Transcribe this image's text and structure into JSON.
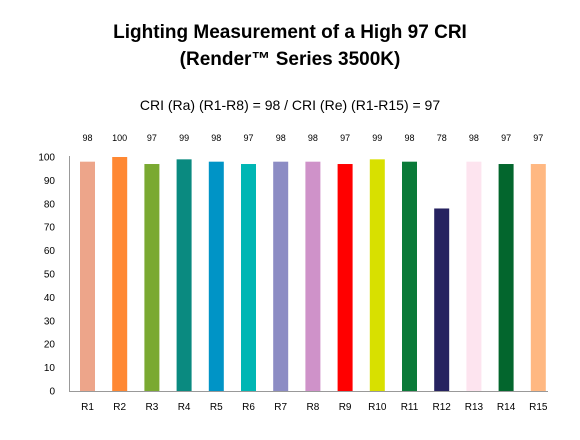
{
  "chart_data": {
    "type": "bar",
    "title": "Lighting Measurement of a High 97 CRI",
    "title_line2": "(Render™ Series 3500K)",
    "subtitle": "CRI (Ra) (R1-R8) = 98 / CRI (Re) (R1-R15) = 97",
    "xlabel": "",
    "ylabel": "",
    "ylim": [
      0,
      100
    ],
    "yticks": [
      0,
      10,
      20,
      30,
      40,
      50,
      60,
      70,
      80,
      90,
      100
    ],
    "grid": false,
    "categories": [
      "R1",
      "R2",
      "R3",
      "R4",
      "R5",
      "R6",
      "R7",
      "R8",
      "R9",
      "R10",
      "R11",
      "R12",
      "R13",
      "R14",
      "R15"
    ],
    "values": [
      98,
      100,
      97,
      99,
      98,
      97,
      98,
      98,
      97,
      99,
      98,
      78,
      98,
      97,
      97
    ],
    "data_labels": [
      "98",
      "100",
      "97",
      "99",
      "98",
      "97",
      "98",
      "98",
      "97",
      "99",
      "98",
      "78",
      "98",
      "97",
      "97"
    ],
    "colors": [
      "#eda58a",
      "#ff8833",
      "#7aa931",
      "#0a8a80",
      "#0094c6",
      "#00b6b4",
      "#8c8cc4",
      "#cf92c9",
      "#ff0000",
      "#d8e000",
      "#0a7a38",
      "#262260",
      "#fde4ef",
      "#03662d",
      "#ffb882"
    ]
  }
}
